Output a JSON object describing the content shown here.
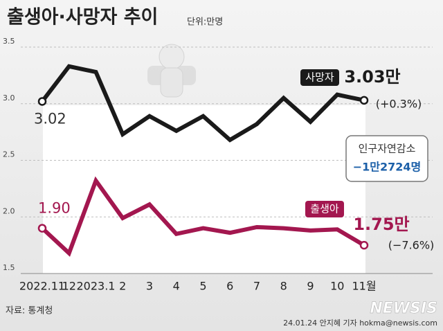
{
  "chart_data": {
    "type": "line",
    "title": "출생아·사망자 추이",
    "subtitle": "단위:만명",
    "categories": [
      "2022.11",
      "12",
      "2023.1",
      "2",
      "3",
      "4",
      "5",
      "6",
      "7",
      "8",
      "9",
      "10",
      "11월"
    ],
    "series": [
      {
        "name": "사망자",
        "color": "#1a1a1a",
        "values": [
          3.02,
          3.33,
          3.28,
          2.73,
          2.89,
          2.76,
          2.89,
          2.68,
          2.82,
          3.05,
          2.84,
          3.08,
          3.03
        ],
        "value_labels": [
          "3.02",
          null,
          null,
          null,
          null,
          null,
          null,
          null,
          null,
          null,
          null,
          null,
          "3.03만"
        ],
        "change": "(+0.3%)"
      },
      {
        "name": "출생아",
        "color": "#a3174f",
        "values": [
          1.9,
          1.68,
          2.32,
          1.99,
          2.11,
          1.85,
          1.9,
          1.86,
          1.91,
          1.9,
          1.88,
          1.89,
          1.75
        ],
        "value_labels": [
          "1.90",
          null,
          null,
          null,
          null,
          null,
          null,
          null,
          null,
          null,
          null,
          null,
          "1.75만"
        ],
        "change": "(−7.6%)"
      }
    ],
    "ylim": [
      1.5,
      3.5
    ],
    "yticks": [
      1.5,
      {
        "value": 2.0,
        "label": "2.0"
      },
      2.5,
      {
        "value": 3.0,
        "label": "3.0"
      },
      3.5
    ],
    "grid": true,
    "annotation": {
      "title": "인구자연감소",
      "text": "−1만2724명"
    },
    "source": "자료: 통계청",
    "credit": "24.01.24 안지혜 기자  hokma@newsis.com",
    "watermark": "NEWSIS"
  }
}
